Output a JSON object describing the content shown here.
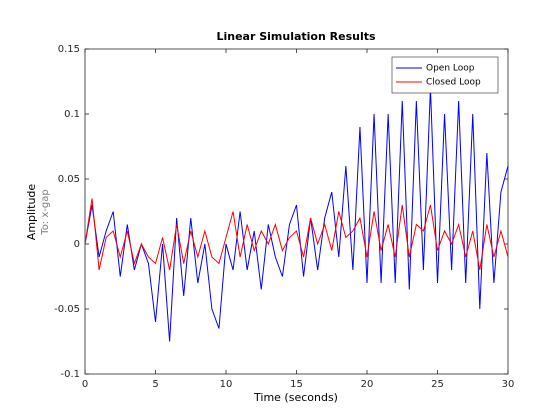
{
  "chart_data": {
    "type": "line",
    "title": "Linear Simulation Results",
    "xlabel": "Time (seconds)",
    "ylabel": "Amplitude",
    "ylabel2": "To: x-gap",
    "x": [
      0,
      0.5,
      1,
      1.5,
      2,
      2.5,
      3,
      3.5,
      4,
      4.5,
      5,
      5.5,
      6,
      6.5,
      7,
      7.5,
      8,
      8.5,
      9,
      9.5,
      10,
      10.5,
      11,
      11.5,
      12,
      12.5,
      13,
      13.5,
      14,
      14.5,
      15,
      15.5,
      16,
      16.5,
      17,
      17.5,
      18,
      18.5,
      19,
      19.5,
      20,
      20.5,
      21,
      21.5,
      22,
      22.5,
      23,
      23.5,
      24,
      24.5,
      25,
      25.5,
      26,
      26.5,
      27,
      27.5,
      28,
      28.5,
      29,
      29.5,
      30
    ],
    "series": [
      {
        "name": "Open Loop",
        "color": "#0000ff",
        "values": [
          0,
          0.03,
          -0.01,
          0.01,
          0.025,
          -0.025,
          0.015,
          -0.02,
          0.0,
          -0.015,
          -0.06,
          0.0,
          -0.075,
          0.02,
          -0.04,
          0.02,
          -0.03,
          0.0,
          -0.05,
          -0.065,
          0.0,
          -0.02,
          0.025,
          -0.02,
          0.01,
          -0.035,
          0.015,
          -0.01,
          -0.025,
          0.015,
          0.03,
          -0.025,
          0.02,
          -0.02,
          0.02,
          0.04,
          -0.01,
          0.06,
          -0.02,
          0.09,
          -0.03,
          0.1,
          -0.03,
          0.1,
          -0.03,
          0.11,
          -0.035,
          0.11,
          -0.02,
          0.12,
          -0.03,
          0.1,
          -0.02,
          0.11,
          -0.03,
          0.1,
          -0.05,
          0.07,
          -0.03,
          0.04,
          0.06
        ]
      },
      {
        "name": "Closed Loop",
        "color": "#ff0000",
        "values": [
          0,
          0.035,
          -0.02,
          0.005,
          0.01,
          -0.01,
          0.01,
          -0.015,
          0.0,
          -0.01,
          -0.015,
          0.005,
          -0.02,
          0.015,
          -0.015,
          0.01,
          -0.01,
          0.01,
          -0.01,
          -0.015,
          0.005,
          0.025,
          -0.01,
          0.015,
          -0.005,
          0.01,
          0.0,
          0.015,
          -0.005,
          0.005,
          0.01,
          -0.01,
          0.02,
          0.0,
          0.015,
          -0.005,
          0.025,
          0.005,
          0.01,
          0.02,
          -0.01,
          0.025,
          -0.005,
          0.015,
          -0.01,
          0.03,
          -0.01,
          0.015,
          0.01,
          0.03,
          -0.005,
          0.01,
          0.0,
          0.015,
          -0.01,
          0.01,
          -0.02,
          0.015,
          -0.01,
          0.01,
          -0.01
        ]
      }
    ],
    "xlim": [
      0,
      30
    ],
    "xticks": [
      0,
      5,
      10,
      15,
      20,
      25,
      30
    ],
    "ylim": [
      -0.1,
      0.15
    ],
    "yticks": [
      -0.1,
      -0.05,
      0,
      0.05,
      0.1,
      0.15
    ],
    "legend": "upper right"
  }
}
